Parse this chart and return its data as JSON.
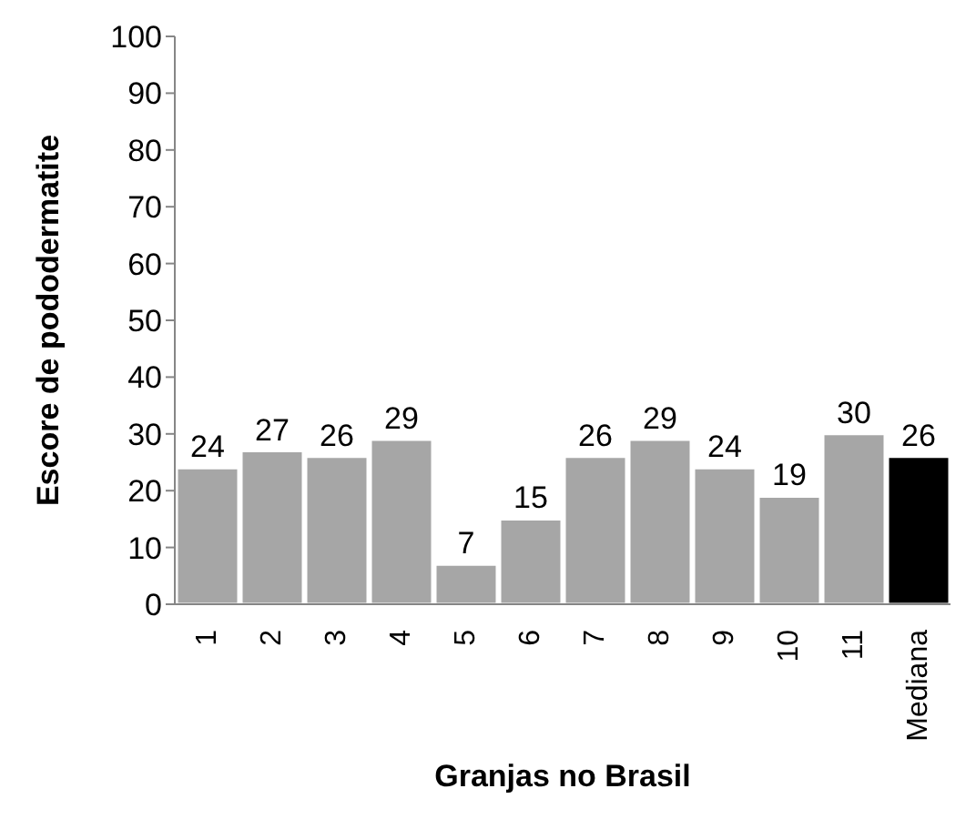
{
  "chart_data": {
    "type": "bar",
    "xlabel": "Granjas no Brasil",
    "ylabel": "Escore de pododermatite",
    "categories": [
      "1",
      "2",
      "3",
      "4",
      "5",
      "6",
      "7",
      "8",
      "9",
      "10",
      "11",
      "Mediana"
    ],
    "values": [
      24,
      27,
      26,
      29,
      7,
      15,
      26,
      29,
      24,
      19,
      30,
      26
    ],
    "colors": [
      "#a6a6a6",
      "#a6a6a6",
      "#a6a6a6",
      "#a6a6a6",
      "#a6a6a6",
      "#a6a6a6",
      "#a6a6a6",
      "#a6a6a6",
      "#a6a6a6",
      "#a6a6a6",
      "#a6a6a6",
      "#000000"
    ],
    "ylim": [
      0,
      100
    ],
    "yticks": [
      0,
      10,
      20,
      30,
      40,
      50,
      60,
      70,
      80,
      90,
      100
    ],
    "grid": false,
    "data_labels": true
  }
}
